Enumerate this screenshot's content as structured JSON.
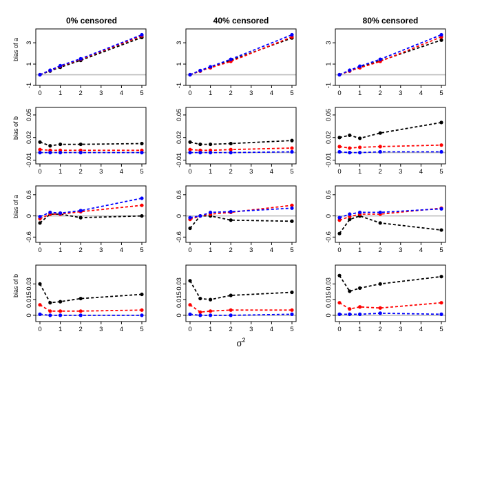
{
  "figure": {
    "column_titles": [
      "0% censored",
      "40% censored",
      "80% censored"
    ],
    "xlabel": "σ",
    "xlabel_superscript": "2"
  },
  "chart_data": [
    {
      "type": "line",
      "row": 0,
      "col": 0,
      "title": "0% censored",
      "ylabel": "bias of a",
      "x": [
        0,
        0.5,
        1,
        2,
        5
      ],
      "xlim": [
        0,
        5
      ],
      "xticks": [
        0,
        1,
        2,
        3,
        4,
        5
      ],
      "ylim": [
        -1,
        4.3
      ],
      "yticks": [
        -1,
        1,
        3
      ],
      "reference_line": 0,
      "series": [
        {
          "color": "#000000",
          "values": [
            0,
            0.35,
            0.7,
            1.35,
            3.5
          ]
        },
        {
          "color": "#ff0000",
          "values": [
            0,
            0.4,
            0.8,
            1.45,
            3.65
          ]
        },
        {
          "color": "#0000ff",
          "values": [
            0,
            0.42,
            0.85,
            1.5,
            3.75
          ]
        }
      ]
    },
    {
      "type": "line",
      "row": 0,
      "col": 1,
      "title": "40% censored",
      "ylabel": "",
      "x": [
        0,
        0.5,
        1,
        2,
        5
      ],
      "xlim": [
        0,
        5
      ],
      "xticks": [
        0,
        1,
        2,
        3,
        4,
        5
      ],
      "ylim": [
        -1,
        4.3
      ],
      "yticks": [
        -1,
        1,
        3
      ],
      "reference_line": 0,
      "series": [
        {
          "color": "#000000",
          "values": [
            0,
            0.35,
            0.7,
            1.35,
            3.45
          ]
        },
        {
          "color": "#ff0000",
          "values": [
            0,
            0.35,
            0.65,
            1.25,
            3.55
          ]
        },
        {
          "color": "#0000ff",
          "values": [
            0,
            0.4,
            0.75,
            1.45,
            3.75
          ]
        }
      ]
    },
    {
      "type": "line",
      "row": 0,
      "col": 2,
      "title": "80% censored",
      "ylabel": "",
      "x": [
        0,
        0.5,
        1,
        2,
        5
      ],
      "xlim": [
        0,
        5
      ],
      "xticks": [
        0,
        1,
        2,
        3,
        4,
        5
      ],
      "ylim": [
        -1,
        4.3
      ],
      "yticks": [
        -1,
        1,
        3
      ],
      "reference_line": 0,
      "series": [
        {
          "color": "#000000",
          "values": [
            0,
            0.35,
            0.7,
            1.3,
            3.25
          ]
        },
        {
          "color": "#ff0000",
          "values": [
            0,
            0.35,
            0.65,
            1.25,
            3.55
          ]
        },
        {
          "color": "#0000ff",
          "values": [
            0,
            0.42,
            0.8,
            1.45,
            3.75
          ]
        }
      ]
    },
    {
      "type": "line",
      "row": 1,
      "col": 0,
      "title": "",
      "ylabel": "bias of b",
      "x": [
        0,
        0.5,
        1,
        2,
        5
      ],
      "xlim": [
        0,
        5
      ],
      "xticks": [
        0,
        1,
        2,
        3,
        4,
        5
      ],
      "ylim": [
        -0.015,
        0.06
      ],
      "yticks": [
        -0.01,
        0.02,
        0.05
      ],
      "reference_line": 0,
      "series": [
        {
          "color": "#000000",
          "values": [
            0.014,
            0.009,
            0.011,
            0.011,
            0.012
          ]
        },
        {
          "color": "#ff0000",
          "values": [
            0.004,
            0.003,
            0.003,
            0.003,
            0.003
          ]
        },
        {
          "color": "#0000ff",
          "values": [
            0.0,
            0.0,
            0.0,
            0.0,
            0.0
          ]
        }
      ]
    },
    {
      "type": "line",
      "row": 1,
      "col": 1,
      "title": "",
      "ylabel": "",
      "x": [
        0,
        0.5,
        1,
        2,
        5
      ],
      "xlim": [
        0,
        5
      ],
      "xticks": [
        0,
        1,
        2,
        3,
        4,
        5
      ],
      "ylim": [
        -0.015,
        0.06
      ],
      "yticks": [
        -0.01,
        0.02,
        0.05
      ],
      "reference_line": 0,
      "series": [
        {
          "color": "#000000",
          "values": [
            0.014,
            0.011,
            0.011,
            0.012,
            0.016
          ]
        },
        {
          "color": "#ff0000",
          "values": [
            0.004,
            0.003,
            0.003,
            0.004,
            0.006
          ]
        },
        {
          "color": "#0000ff",
          "values": [
            0.0,
            0.0,
            0.0,
            0.0,
            0.001
          ]
        }
      ]
    },
    {
      "type": "line",
      "row": 1,
      "col": 2,
      "title": "",
      "ylabel": "",
      "x": [
        0,
        0.5,
        1,
        2,
        5
      ],
      "xlim": [
        0,
        5
      ],
      "xticks": [
        0,
        1,
        2,
        3,
        4,
        5
      ],
      "ylim": [
        -0.015,
        0.06
      ],
      "yticks": [
        -0.01,
        0.02,
        0.05
      ],
      "reference_line": 0,
      "series": [
        {
          "color": "#000000",
          "values": [
            0.02,
            0.023,
            0.019,
            0.026,
            0.04
          ]
        },
        {
          "color": "#ff0000",
          "values": [
            0.008,
            0.006,
            0.007,
            0.008,
            0.01
          ]
        },
        {
          "color": "#0000ff",
          "values": [
            0.001,
            0.0,
            0.0,
            0.001,
            0.001
          ]
        }
      ]
    },
    {
      "type": "line",
      "row": 2,
      "col": 0,
      "title": "",
      "ylabel": "bias of a",
      "x": [
        0,
        0.5,
        1,
        2,
        5
      ],
      "xlim": [
        0,
        5
      ],
      "xticks": [
        0,
        1,
        2,
        3,
        4,
        5
      ],
      "ylim": [
        -0.75,
        0.85
      ],
      "yticks": [
        -0.6,
        0,
        0.6
      ],
      "reference_line": 0,
      "series": [
        {
          "color": "#000000",
          "values": [
            -0.2,
            0.05,
            0.05,
            -0.05,
            0.0
          ]
        },
        {
          "color": "#ff0000",
          "values": [
            -0.08,
            0.05,
            0.05,
            0.12,
            0.3
          ]
        },
        {
          "color": "#0000ff",
          "values": [
            -0.02,
            0.1,
            0.08,
            0.15,
            0.5
          ]
        }
      ]
    },
    {
      "type": "line",
      "row": 2,
      "col": 1,
      "title": "",
      "ylabel": "",
      "x": [
        0,
        0.5,
        1,
        2,
        5
      ],
      "xlim": [
        0,
        5
      ],
      "xticks": [
        0,
        1,
        2,
        3,
        4,
        5
      ],
      "ylim": [
        -0.75,
        0.85
      ],
      "yticks": [
        -0.6,
        0,
        0.6
      ],
      "reference_line": 0,
      "series": [
        {
          "color": "#000000",
          "values": [
            -0.35,
            0.0,
            0.0,
            -0.12,
            -0.15
          ]
        },
        {
          "color": "#ff0000",
          "values": [
            -0.1,
            0.0,
            0.05,
            0.1,
            0.3
          ]
        },
        {
          "color": "#0000ff",
          "values": [
            -0.05,
            0.0,
            0.1,
            0.12,
            0.22
          ]
        }
      ]
    },
    {
      "type": "line",
      "row": 2,
      "col": 2,
      "title": "",
      "ylabel": "",
      "x": [
        0,
        0.5,
        1,
        2,
        5
      ],
      "xlim": [
        0,
        5
      ],
      "xticks": [
        0,
        1,
        2,
        3,
        4,
        5
      ],
      "ylim": [
        -0.75,
        0.85
      ],
      "yticks": [
        -0.6,
        0,
        0.6
      ],
      "reference_line": 0,
      "series": [
        {
          "color": "#000000",
          "values": [
            -0.5,
            -0.1,
            0.0,
            -0.2,
            -0.4
          ]
        },
        {
          "color": "#ff0000",
          "values": [
            -0.12,
            -0.02,
            0.05,
            0.05,
            0.22
          ]
        },
        {
          "color": "#0000ff",
          "values": [
            -0.05,
            0.05,
            0.1,
            0.1,
            0.2
          ]
        }
      ]
    },
    {
      "type": "line",
      "row": 3,
      "col": 0,
      "title": "",
      "ylabel": "bias of b",
      "x": [
        0,
        0.5,
        1,
        2,
        5
      ],
      "xlim": [
        0,
        5
      ],
      "xticks": [
        0,
        1,
        2,
        3,
        4,
        5
      ],
      "ylim": [
        -0.006,
        0.048
      ],
      "yticks": [
        0,
        0.015,
        0.03
      ],
      "reference_line": 0,
      "series": [
        {
          "color": "#000000",
          "values": [
            0.03,
            0.012,
            0.013,
            0.016,
            0.02
          ]
        },
        {
          "color": "#ff0000",
          "values": [
            0.01,
            0.004,
            0.004,
            0.004,
            0.005
          ]
        },
        {
          "color": "#0000ff",
          "values": [
            0.001,
            0.0,
            0.0,
            0.0,
            0.0
          ]
        }
      ]
    },
    {
      "type": "line",
      "row": 3,
      "col": 1,
      "title": "",
      "ylabel": "",
      "x": [
        0,
        0.5,
        1,
        2,
        5
      ],
      "xlim": [
        0,
        5
      ],
      "xticks": [
        0,
        1,
        2,
        3,
        4,
        5
      ],
      "ylim": [
        -0.006,
        0.048
      ],
      "yticks": [
        0,
        0.015,
        0.03
      ],
      "reference_line": 0,
      "series": [
        {
          "color": "#000000",
          "values": [
            0.033,
            0.016,
            0.015,
            0.019,
            0.022
          ]
        },
        {
          "color": "#ff0000",
          "values": [
            0.01,
            0.003,
            0.004,
            0.005,
            0.005
          ]
        },
        {
          "color": "#0000ff",
          "values": [
            0.001,
            0.0,
            0.0,
            0.0,
            0.001
          ]
        }
      ]
    },
    {
      "type": "line",
      "row": 3,
      "col": 2,
      "title": "",
      "ylabel": "",
      "x": [
        0,
        0.5,
        1,
        2,
        5
      ],
      "xlim": [
        0,
        5
      ],
      "xticks": [
        0,
        1,
        2,
        3,
        4,
        5
      ],
      "ylim": [
        -0.006,
        0.048
      ],
      "yticks": [
        0,
        0.015,
        0.03
      ],
      "reference_line": 0,
      "series": [
        {
          "color": "#000000",
          "values": [
            0.038,
            0.023,
            0.026,
            0.03,
            0.037
          ]
        },
        {
          "color": "#ff0000",
          "values": [
            0.012,
            0.006,
            0.008,
            0.007,
            0.012
          ]
        },
        {
          "color": "#0000ff",
          "values": [
            0.001,
            0.001,
            0.001,
            0.002,
            0.001
          ]
        }
      ]
    }
  ]
}
